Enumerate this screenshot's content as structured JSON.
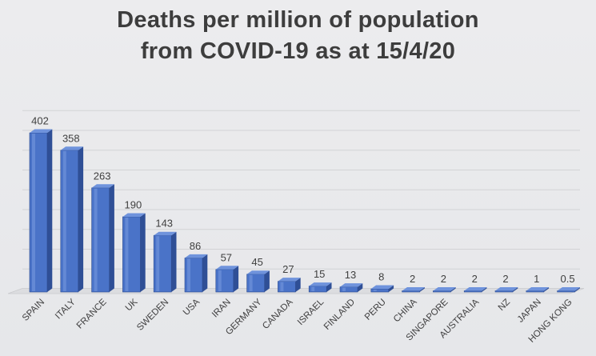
{
  "chart_data": {
    "type": "bar",
    "title": [
      "Deaths per million of population",
      "from COVID-19 as at 15/4/20"
    ],
    "xlabel": "",
    "ylabel": "",
    "categories": [
      "SPAIN",
      "ITALY",
      "FRANCE",
      "UK",
      "SWEDEN",
      "USA",
      "IRAN",
      "GERMANY",
      "CANADA",
      "ISRAEL",
      "FINLAND",
      "PERU",
      "CHINA",
      "SINGAPORE",
      "AUSTRALIA",
      "NZ",
      "JAPAN",
      "HONG KONG"
    ],
    "values": [
      402,
      358,
      263,
      190,
      143,
      86,
      57,
      45,
      27,
      15,
      13,
      8,
      2,
      2,
      2,
      2,
      1,
      0.5
    ],
    "value_labels": [
      "402",
      "358",
      "263",
      "190",
      "143",
      "86",
      "57",
      "45",
      "27",
      "15",
      "13",
      "8",
      "2",
      "2",
      "2",
      "2",
      "1",
      "0.5"
    ],
    "ylim": [
      0,
      450
    ],
    "grid": true,
    "legend": "none",
    "bar_style": "3d-cylinder",
    "colors": {
      "bar_front": "#4a73c8",
      "bar_side": "#2f4f96",
      "bar_top": "#6f93dc",
      "grid": "#d2d3d6"
    }
  }
}
